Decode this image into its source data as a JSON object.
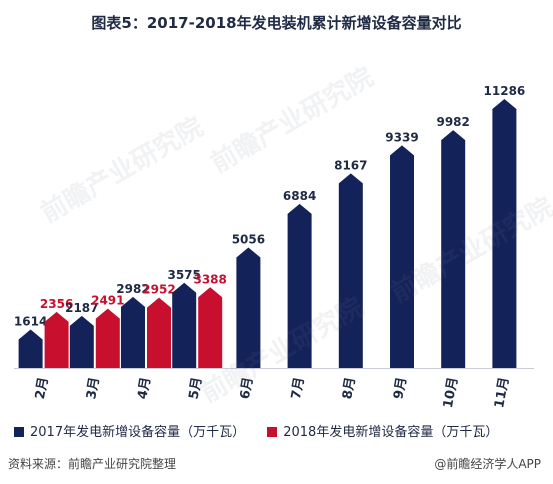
{
  "title": "图表5：2017-2018年发电装机累计新增设备容量对比",
  "source": "资料来源：前瞻产业研究院整理",
  "brand": "@前瞻经济学人APP",
  "watermark_text": "前瞻产业研究院",
  "colors": {
    "series2017": "#14225a",
    "series2018": "#c8102e",
    "label2018": "#c8102e",
    "label2017": "#1f2a44"
  },
  "chart_data": {
    "type": "bar",
    "categories": [
      "2月",
      "3月",
      "4月",
      "5月",
      "6月",
      "7月",
      "8月",
      "9月",
      "10月",
      "11月"
    ],
    "series": [
      {
        "name": "2017年发电新增设备容量（万千瓦）",
        "values": [
          1614,
          2187,
          2982,
          3575,
          5056,
          6884,
          8167,
          9339,
          9982,
          11286
        ]
      },
      {
        "name": "2018年发电新增设备容量（万千瓦）",
        "values": [
          2356,
          2491,
          2952,
          3388,
          null,
          null,
          null,
          null,
          null,
          null
        ]
      }
    ],
    "ylim": [
      0,
      12000
    ],
    "grid": false,
    "legend_position": "bottom"
  }
}
